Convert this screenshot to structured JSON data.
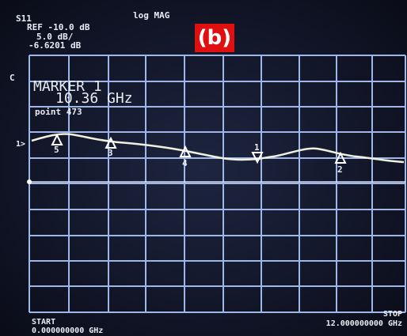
{
  "header": {
    "parameter": "S11",
    "format": "log MAG",
    "ref": "REF -10.0 dB",
    "scale": "5.0 dB/",
    "marker_value": "-6.6201 dB"
  },
  "figure_label": "(b)",
  "channel": "C",
  "reference_marker": "1>",
  "marker": {
    "title": "MARKER 1",
    "frequency": "10.36 GHz",
    "point": "point  473"
  },
  "markers": [
    "5",
    "3",
    "4",
    "1",
    "2"
  ],
  "footer": {
    "start_label": "START",
    "start_value": "0.000000000 GHz",
    "stop_label": "STOP",
    "stop_value": "12.000000000 GHz"
  }
}
